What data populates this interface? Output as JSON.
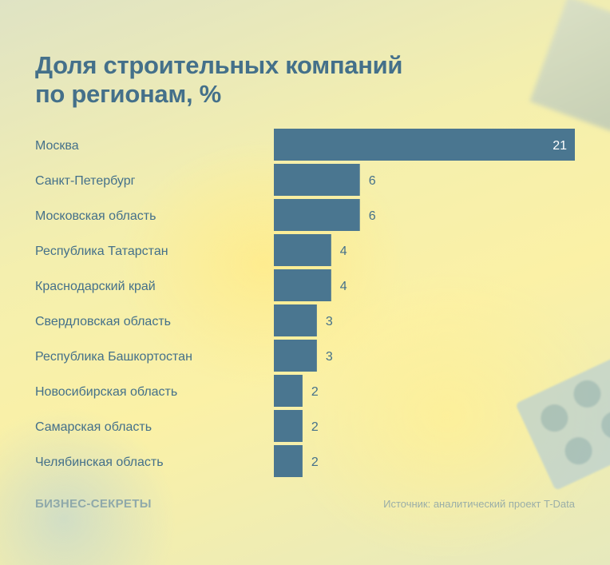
{
  "chart_data": {
    "type": "bar",
    "orientation": "horizontal",
    "title": "Доля строительных компаний по регионам, %",
    "title_lines": [
      "Доля строительных компаний",
      "по регионам, %"
    ],
    "categories": [
      "Москва",
      "Санкт-Петербург",
      "Московская область",
      "Республика Татарстан",
      "Краснодарский край",
      "Свердловская область",
      "Республика Башкортостан",
      "Новосибирская область",
      "Самарская область",
      "Челябинская область"
    ],
    "values": [
      21,
      6,
      6,
      4,
      4,
      3,
      3,
      2,
      2,
      2
    ],
    "xlabel": "",
    "ylabel": "",
    "xlim": [
      0,
      21
    ],
    "grid": false,
    "data_labels": true,
    "bar_color": "#4a7690",
    "text_color": "#44708a"
  },
  "footer": {
    "brand": "БИЗНЕС-СЕКРЕТЫ",
    "source": "Источник: аналитический проект T-Data"
  }
}
